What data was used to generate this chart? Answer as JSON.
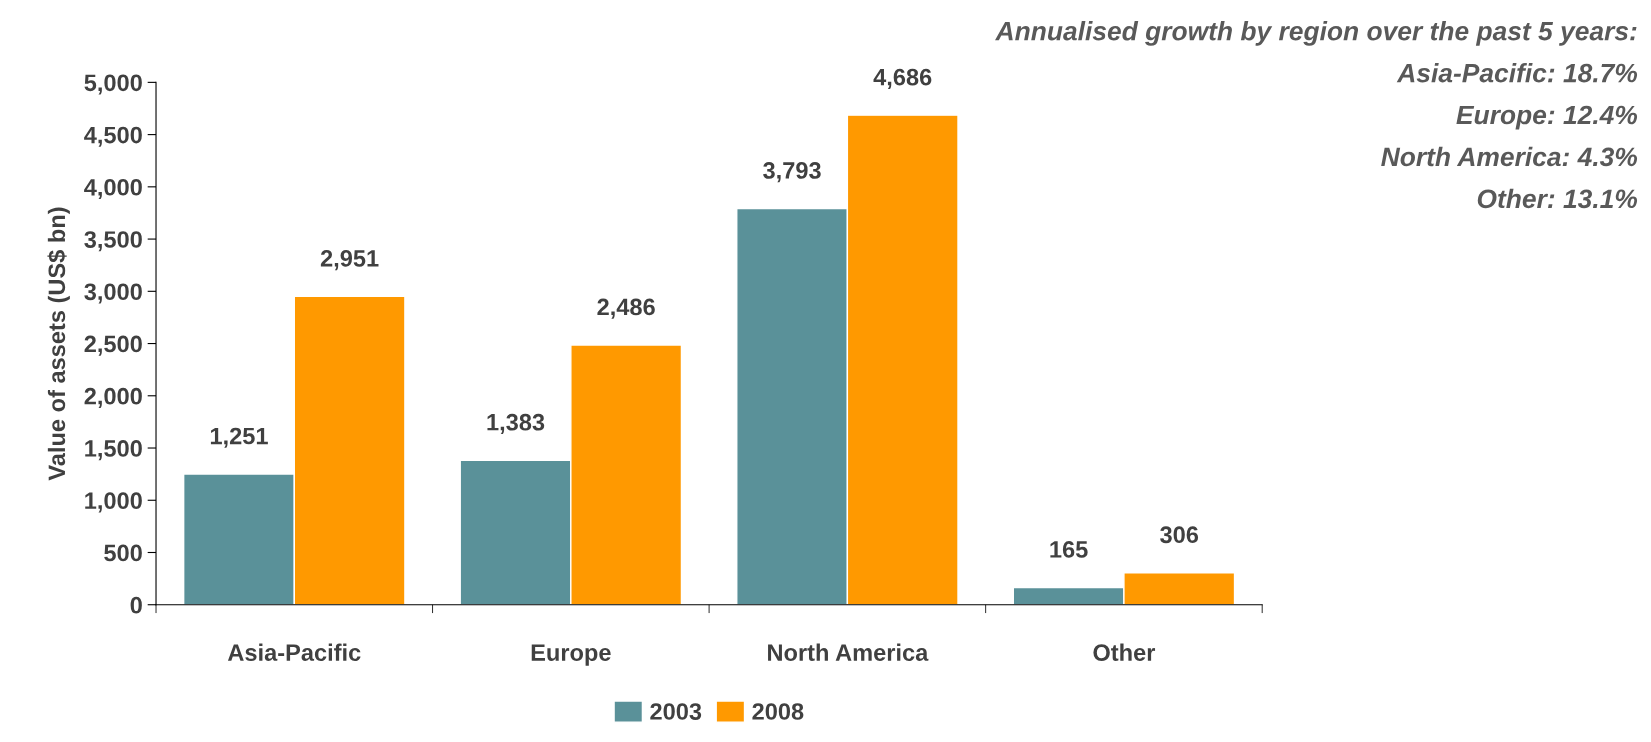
{
  "chart_data": {
    "type": "bar",
    "ylabel": "Value of assets (US$ bn)",
    "categories": [
      "Asia-Pacific",
      "Europe",
      "North America",
      "Other"
    ],
    "series": [
      {
        "name": "2003",
        "color": "#5a9199",
        "values": [
          1251,
          1383,
          3793,
          165
        ],
        "value_labels": [
          "1,251",
          "1,383",
          "3,793",
          "165"
        ]
      },
      {
        "name": "2008",
        "color": "#ff9900",
        "values": [
          2951,
          2486,
          4686,
          306
        ],
        "value_labels": [
          "2,951",
          "2,486",
          "4,686",
          "306"
        ]
      }
    ],
    "ylim": [
      0,
      5000
    ],
    "yticks": [
      0,
      {
        "value": 500,
        "label": "500"
      },
      {
        "value": 1000,
        "label": "1,000"
      },
      {
        "value": 1500,
        "label": "1,500"
      },
      {
        "value": 2000,
        "label": "2,000"
      },
      {
        "value": 2500,
        "label": "2,500"
      },
      {
        "value": 3000,
        "label": "3,000"
      },
      {
        "value": 3500,
        "label": "3,500"
      },
      {
        "value": 4000,
        "label": "4,000"
      },
      {
        "value": 4500,
        "label": "4,500"
      },
      {
        "value": 5000,
        "label": "5,000"
      }
    ],
    "grid": false,
    "legend": "bottom",
    "annotations": [
      "Annualised growth by region over the past 5 years:",
      "Asia-Pacific: 18.7%",
      "Europe: 12.4%",
      "North America: 4.3%",
      "Other: 13.1%"
    ]
  }
}
